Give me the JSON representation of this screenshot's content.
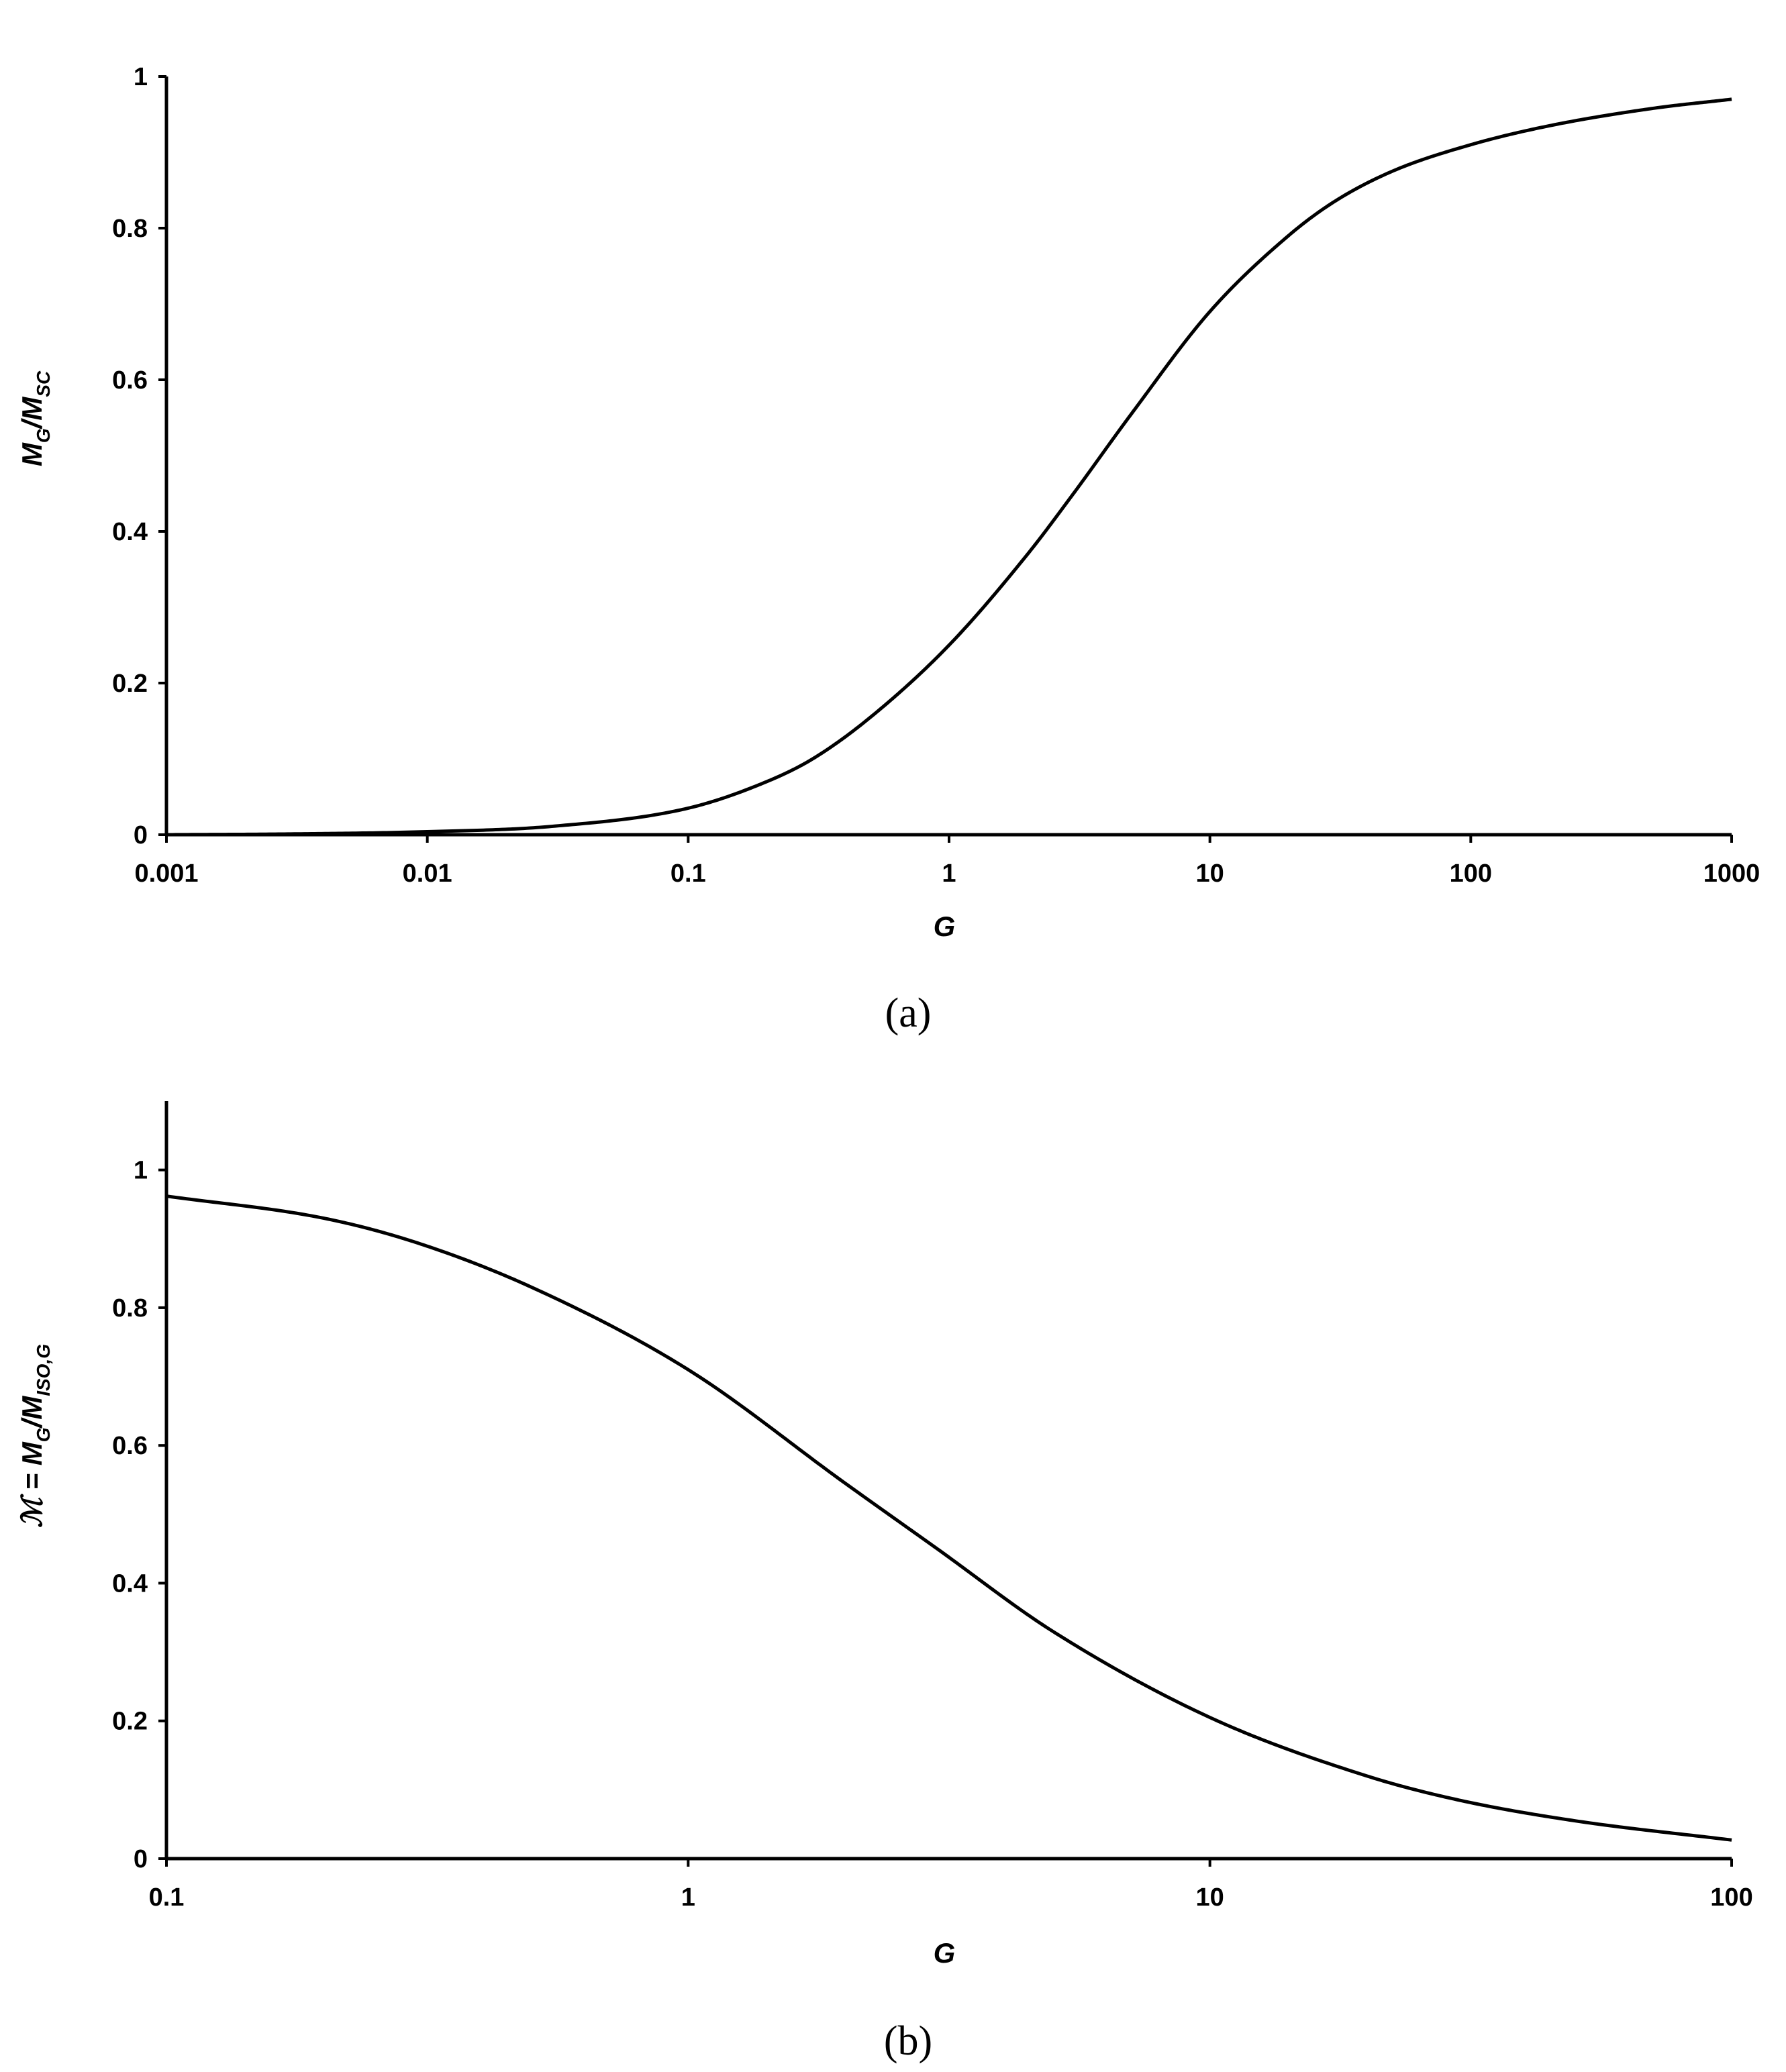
{
  "chart_data": [
    {
      "type": "line",
      "panel_label": "(a)",
      "xscale": "log",
      "xlim": [
        0.001,
        1000
      ],
      "ylim": [
        0,
        1
      ],
      "xticks": [
        "0.001",
        "0.01",
        "0.1",
        "1",
        "10",
        "100",
        "1000"
      ],
      "yticks": [
        "0",
        "0.2",
        "0.4",
        "0.6",
        "0.8",
        "1"
      ],
      "xlabel": "G",
      "ylabel": {
        "main": "M",
        "sub1": "G",
        "slash": "/M",
        "sub2": "SC"
      },
      "grid": false,
      "series": [
        {
          "x": [
            0.001,
            0.003,
            0.01,
            0.03,
            0.1,
            0.2,
            0.3,
            0.5,
            1,
            2,
            3,
            5,
            10,
            20,
            30,
            50,
            100,
            200,
            500,
            1000
          ],
          "y": [
            0.0,
            0.001,
            0.004,
            0.011,
            0.035,
            0.07,
            0.1,
            0.155,
            0.25,
            0.37,
            0.45,
            0.555,
            0.69,
            0.79,
            0.835,
            0.875,
            0.91,
            0.935,
            0.958,
            0.97
          ]
        }
      ]
    },
    {
      "type": "line",
      "panel_label": "(b)",
      "xscale": "log",
      "xlim": [
        0.1,
        100
      ],
      "ylim": [
        0,
        1.1
      ],
      "xticks": [
        "0.1",
        "1",
        "10",
        "100"
      ],
      "yticks": [
        "0",
        "0.2",
        "0.4",
        "0.6",
        "0.8",
        "1"
      ],
      "xlabel": "G",
      "ylabel": {
        "script": "ℳ",
        "eq": " = ",
        "main": "M",
        "sub1": "G",
        "slash": "/M",
        "sub2": "ISO,G"
      },
      "grid": false,
      "series": [
        {
          "x": [
            0.1,
            0.2,
            0.3,
            0.5,
            1,
            2,
            3,
            5,
            10,
            20,
            30,
            50,
            100
          ],
          "y": [
            0.962,
            0.93,
            0.895,
            0.83,
            0.71,
            0.545,
            0.45,
            0.33,
            0.205,
            0.12,
            0.085,
            0.055,
            0.027
          ]
        }
      ]
    }
  ]
}
